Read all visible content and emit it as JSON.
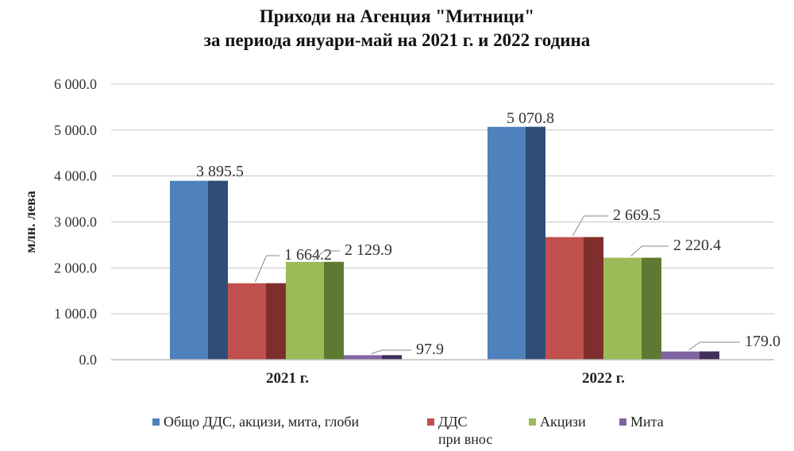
{
  "chart_data": {
    "type": "bar",
    "title": "Приходи на Агенция \"Митници\"",
    "subtitle": "за периода януари-май на 2021 г. и 2022 година",
    "ylabel": "млн. лева",
    "xlabel": "",
    "ylim": [
      0,
      6000
    ],
    "yticks": [
      "0.0",
      "1 000.0",
      "2 000.0",
      "3 000.0",
      "4 000.0",
      "5 000.0",
      "6 000.0"
    ],
    "categories": [
      "2021 г.",
      "2022 г."
    ],
    "grid": true,
    "legend_position": "bottom",
    "series": [
      {
        "name": "Общо ДДС, акцизи, мита, глоби",
        "values": [
          3895.5,
          5070.8
        ],
        "labels": [
          "3 895.5",
          "5 070.8"
        ],
        "color": "#4f81bd",
        "side_color": "#2e4e78"
      },
      {
        "name": "ДДС\nпри внос",
        "values": [
          1664.2,
          2669.5
        ],
        "labels": [
          "1 664.2",
          "2 669.5"
        ],
        "color": "#c0504d",
        "side_color": "#7e2f2d"
      },
      {
        "name": "Акцизи",
        "values": [
          2129.9,
          2220.4
        ],
        "labels": [
          "2 129.9",
          "2 220.4"
        ],
        "color": "#9bbb59",
        "side_color": "#5e7a32"
      },
      {
        "name": "Мита",
        "values": [
          97.9,
          179.0
        ],
        "labels": [
          "97.9",
          "179.0"
        ],
        "color": "#8064a2",
        "side_color": "#3f2f5a"
      }
    ]
  }
}
